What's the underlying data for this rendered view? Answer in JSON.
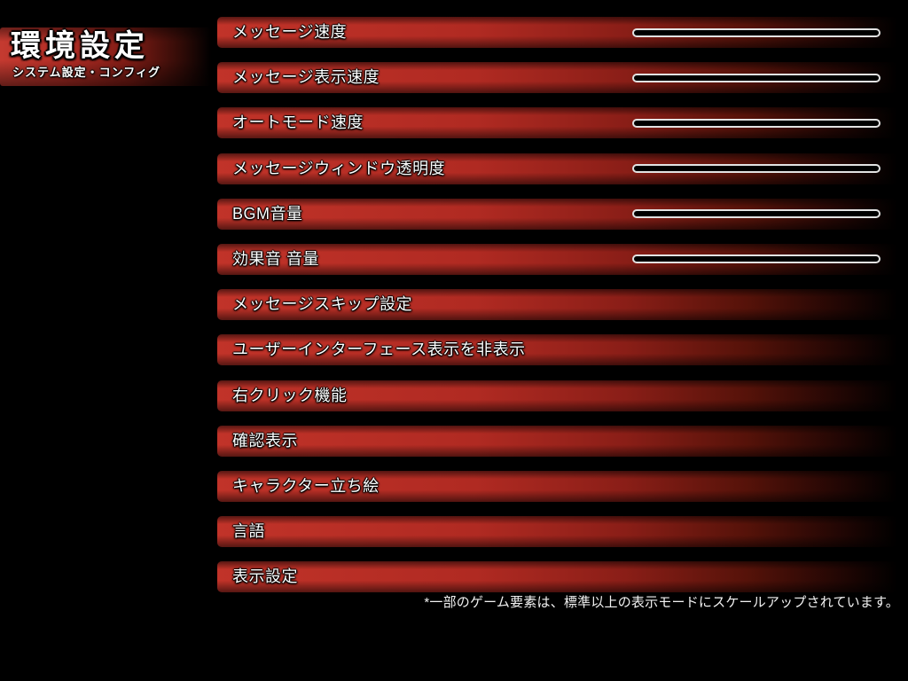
{
  "header": {
    "title": "環境設定",
    "subtitle": "システム設定・コンフィグ"
  },
  "settings": [
    {
      "label": "メッセージ速度",
      "has_slider": true
    },
    {
      "label": "メッセージ表示速度",
      "has_slider": true
    },
    {
      "label": "オートモード速度",
      "has_slider": true
    },
    {
      "label": "メッセージウィンドウ透明度",
      "has_slider": true
    },
    {
      "label": "BGM音量",
      "has_slider": true
    },
    {
      "label": "効果音 音量",
      "has_slider": true
    },
    {
      "label": "メッセージスキップ設定",
      "has_slider": false
    },
    {
      "label": "ユーザーインターフェース表示を非表示",
      "has_slider": false
    },
    {
      "label": "右クリック機能",
      "has_slider": false
    },
    {
      "label": "確認表示",
      "has_slider": false
    },
    {
      "label": "キャラクター立ち絵",
      "has_slider": false
    },
    {
      "label": "言語",
      "has_slider": false
    },
    {
      "label": "表示設定",
      "has_slider": false
    }
  ],
  "footnote": "*一部のゲーム要素は、標準以上の表示モードにスケールアップされています。",
  "colors": {
    "bar_red": "#b52a22",
    "bar_red_bright": "#c13329",
    "slider_outline": "#e2e2e2",
    "slider_fill": "#000000",
    "text_color": "#ffffff",
    "bg_color": "#000000"
  }
}
